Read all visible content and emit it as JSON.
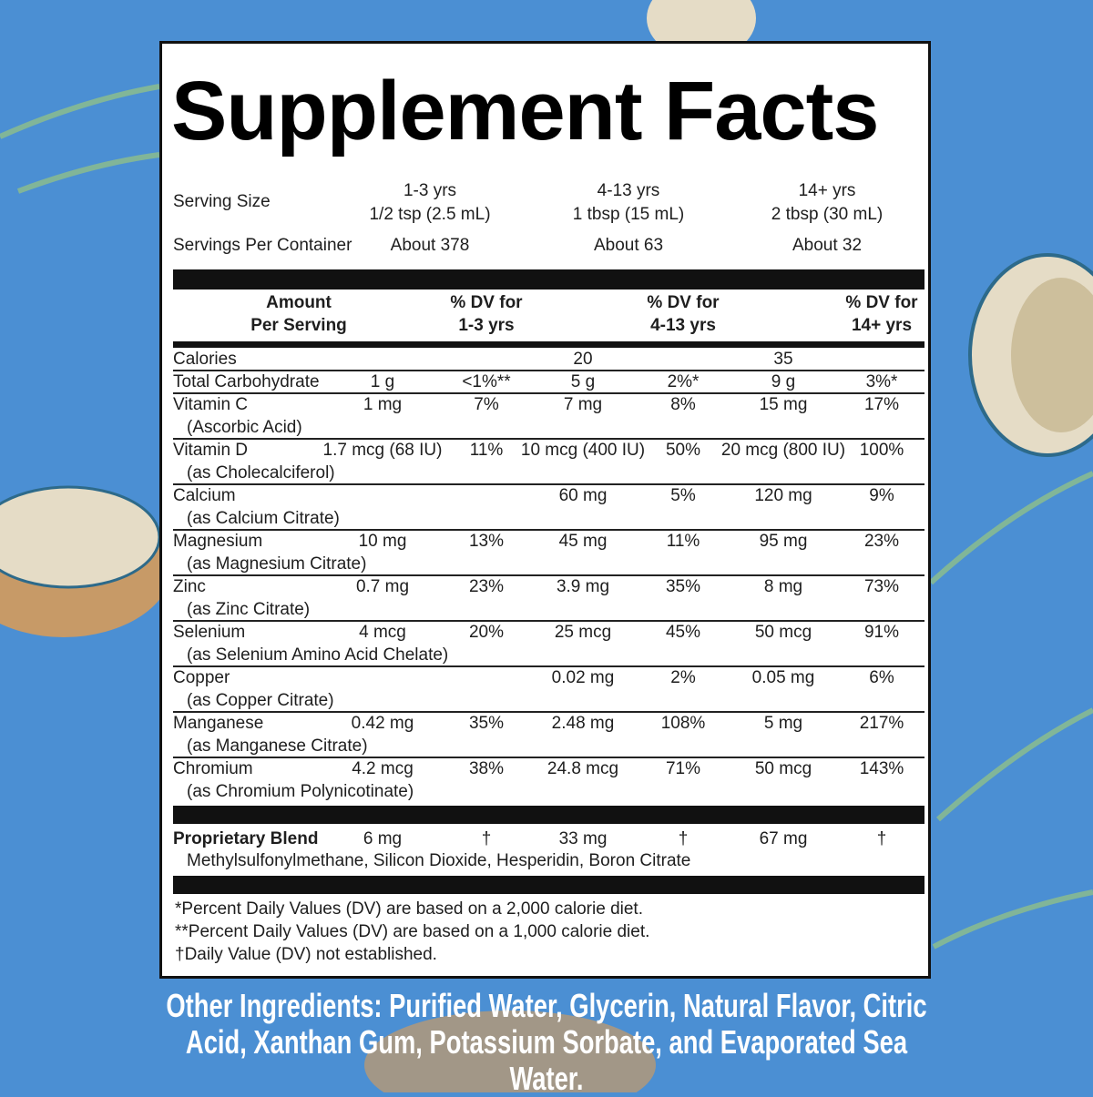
{
  "title": "Supplement Facts",
  "serving": {
    "size_label": "Serving Size",
    "sizes": [
      [
        "1-3 yrs",
        "1/2 tsp (2.5 mL)"
      ],
      [
        "4-13 yrs",
        "1 tbsp (15 mL)"
      ],
      [
        "14+ yrs",
        "2 tbsp (30 mL)"
      ]
    ],
    "per_container_label": "Servings Per Container",
    "per_container": [
      "About 378",
      "About 63",
      "About 32"
    ]
  },
  "header": [
    [
      "Amount",
      "Per Serving"
    ],
    [
      "% DV for",
      "1-3 yrs"
    ],
    [
      "% DV for",
      "4-13 yrs"
    ],
    [
      "% DV for",
      "14+ yrs"
    ]
  ],
  "rows": [
    {
      "name": "Calories",
      "cells": [
        null,
        null,
        "20",
        null,
        "35",
        null
      ]
    },
    {
      "name": "Total Carbohydrate",
      "cells": [
        "1 g",
        "<1%**",
        "5 g",
        "2%*",
        "9 g",
        "3%*"
      ]
    },
    {
      "name": "Vitamin C",
      "sub": "(Ascorbic Acid)",
      "cells": [
        "1 mg",
        "7%",
        "7 mg",
        "8%",
        "15 mg",
        "17%"
      ]
    },
    {
      "name": "Vitamin D",
      "sub": "(as Cholecalciferol)",
      "cells": [
        "1.7 mcg (68 IU)",
        "11%",
        "10 mcg (400 IU)",
        "50%",
        "20 mcg (800 IU)",
        "100%"
      ]
    },
    {
      "name": "Calcium",
      "sub": "(as Calcium Citrate)",
      "cells": [
        null,
        null,
        "60 mg",
        "5%",
        "120 mg",
        "9%"
      ]
    },
    {
      "name": "Magnesium",
      "sub": "(as Magnesium Citrate)",
      "cells": [
        "10 mg",
        "13%",
        "45 mg",
        "11%",
        "95 mg",
        "23%"
      ]
    },
    {
      "name": "Zinc",
      "sub": "(as Zinc Citrate)",
      "cells": [
        "0.7 mg",
        "23%",
        "3.9 mg",
        "35%",
        "8 mg",
        "73%"
      ]
    },
    {
      "name": "Selenium",
      "sub": "(as Selenium Amino Acid Chelate)",
      "cells": [
        "4 mcg",
        "20%",
        "25 mcg",
        "45%",
        "50 mcg",
        "91%"
      ]
    },
    {
      "name": "Copper",
      "sub": "(as Copper Citrate)",
      "cells": [
        null,
        null,
        "0.02 mg",
        "2%",
        "0.05 mg",
        "6%"
      ]
    },
    {
      "name": "Manganese",
      "sub": "(as Manganese Citrate)",
      "cells": [
        "0.42 mg",
        "35%",
        "2.48 mg",
        "108%",
        "5 mg",
        "217%"
      ]
    },
    {
      "name": "Chromium",
      "sub": "(as Chromium Polynicotinate)",
      "cells": [
        "4.2 mcg",
        "38%",
        "24.8 mcg",
        "71%",
        "50 mcg",
        "143%"
      ]
    }
  ],
  "blend": {
    "name": "Proprietary Blend",
    "cells": [
      "6 mg",
      "†",
      "33 mg",
      "†",
      "67 mg",
      "†"
    ],
    "ingredients": "Methylsulfonylmethane, Silicon Dioxide, Hesperidin, Boron Citrate"
  },
  "footnotes": [
    "*Percent Daily Values (DV) are based on a 2,000 calorie diet.",
    "**Percent Daily Values (DV) are based on a 1,000 calorie diet.",
    "†Daily Value (DV) not established."
  ],
  "other_ingredients": "Other Ingredients: Purified Water, Glycerin, Natural Flavor, Citric Acid, Xanthan Gum, Potassium Sorbate, and Evaporated Sea Water."
}
